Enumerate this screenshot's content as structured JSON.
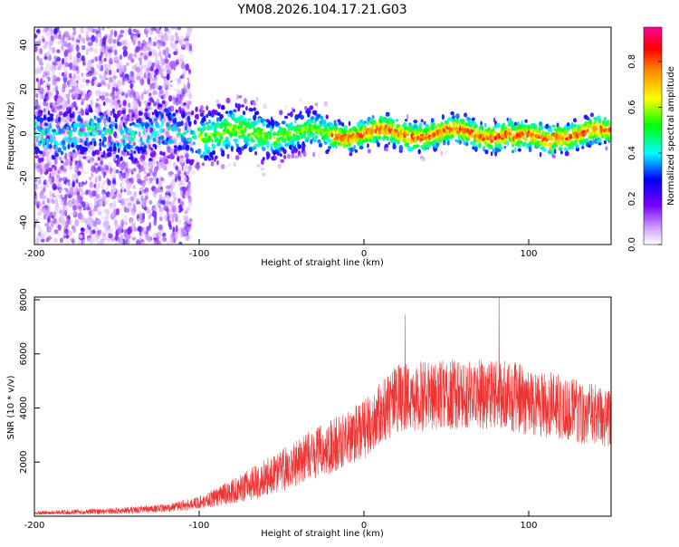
{
  "figure": {
    "title": "YM08.2026.104.17.21.G03"
  },
  "chart_data": [
    {
      "type": "heatmap",
      "title": "YM08.2026.104.17.21.G03",
      "xlabel": "Height of straight line (km)",
      "ylabel": "Frequency (Hz)",
      "xlim": [
        -200,
        150
      ],
      "ylim": [
        -50,
        48
      ],
      "xticks": [
        -200,
        -100,
        0,
        100
      ],
      "yticks": [
        -40,
        -20,
        0,
        20,
        40
      ],
      "xtick_labels": [
        "-200",
        "-100",
        "0",
        "100"
      ],
      "ytick_labels": [
        "-40",
        "-20",
        "0",
        "20",
        "40"
      ],
      "colorbar": {
        "label": "Normalized spectral amplitude",
        "range": [
          0,
          0.95
        ],
        "ticks": [
          0.0,
          0.2,
          0.4,
          0.6,
          0.8
        ],
        "tick_labels": [
          "0.0",
          "0.2",
          "0.4",
          "0.6",
          "0.8"
        ],
        "colormap": [
          "#ffffff",
          "#cc99ff",
          "#7700ff",
          "#0000ff",
          "#00ffff",
          "#00ff00",
          "#ffff00",
          "#ff8800",
          "#ff0000",
          "#ff0099"
        ]
      },
      "description_points": {
        "center_frequency_hz": 0,
        "scatter_region_km": [
          -200,
          -105
        ],
        "strong_band_start_km": -20
      }
    },
    {
      "type": "line",
      "xlabel": "Height of straight line (km)",
      "ylabel": "SNR (10 * v/v)",
      "xlim": [
        -200,
        150
      ],
      "ylim": [
        0,
        8100
      ],
      "xticks": [
        -200,
        -100,
        0,
        100
      ],
      "yticks": [
        2000,
        4000,
        6000,
        8000
      ],
      "xtick_labels": [
        "-200",
        "-100",
        "0",
        "100"
      ],
      "ytick_labels": [
        "2000",
        "4000",
        "6000",
        "8000"
      ],
      "series": [
        {
          "name": "SNR",
          "color": "#ee3333",
          "envelope_x": [
            -200,
            -150,
            -120,
            -100,
            -80,
            -60,
            -40,
            -20,
            0,
            10,
            20,
            30,
            50,
            80,
            100,
            120,
            150
          ],
          "envelope_y": [
            100,
            200,
            300,
            500,
            900,
            1400,
            2000,
            2600,
            3200,
            3800,
            4300,
            4400,
            4500,
            4500,
            4300,
            4000,
            3600
          ],
          "noise_scale": [
            80,
            120,
            150,
            250,
            450,
            700,
            900,
            1000,
            1100,
            1200,
            1300,
            1300,
            1300,
            1300,
            1300,
            1200,
            1100
          ],
          "peak_points": [
            {
              "x": 25,
              "y": 7450
            },
            {
              "x": 82,
              "y": 8100
            }
          ]
        }
      ]
    }
  ]
}
